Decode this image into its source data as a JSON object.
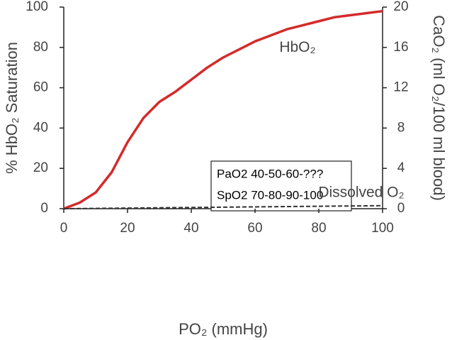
{
  "chart_data": {
    "type": "line",
    "x": [
      0,
      5,
      10,
      15,
      20,
      25,
      30,
      35,
      40,
      45,
      50,
      55,
      60,
      65,
      70,
      75,
      80,
      85,
      90,
      95,
      100
    ],
    "series": [
      {
        "name": "HbO₂",
        "color": "#d42a2a",
        "values": [
          0,
          3,
          8,
          18,
          33,
          45,
          53,
          58,
          64,
          70,
          75,
          79,
          83,
          86,
          89,
          91,
          93,
          95,
          96,
          97,
          98
        ]
      },
      {
        "name": "Dissolved O₂",
        "color": "#333333",
        "axis": "y2",
        "dashed": true,
        "values": [
          0,
          0.015,
          0.03,
          0.045,
          0.06,
          0.075,
          0.09,
          0.105,
          0.12,
          0.135,
          0.15,
          0.165,
          0.18,
          0.195,
          0.21,
          0.225,
          0.24,
          0.255,
          0.27,
          0.285,
          0.3
        ]
      }
    ],
    "xlabel": "PO₂ (mmHg)",
    "ylabel": "% HbO₂ Saturation",
    "y2label": "CaO₂ (ml O₂/100 ml blood)",
    "xlim": [
      0,
      100
    ],
    "xticks": [
      0,
      20,
      40,
      60,
      80,
      100
    ],
    "ylim": [
      0,
      100
    ],
    "yticks": [
      0,
      20,
      40,
      60,
      80,
      100
    ],
    "y2lim": [
      0,
      20
    ],
    "y2ticks": [
      0,
      4,
      8,
      12,
      16,
      20
    ],
    "annotations": [
      "PaO2 40-50-60-???",
      "SpO2 70-80-90-100"
    ]
  }
}
